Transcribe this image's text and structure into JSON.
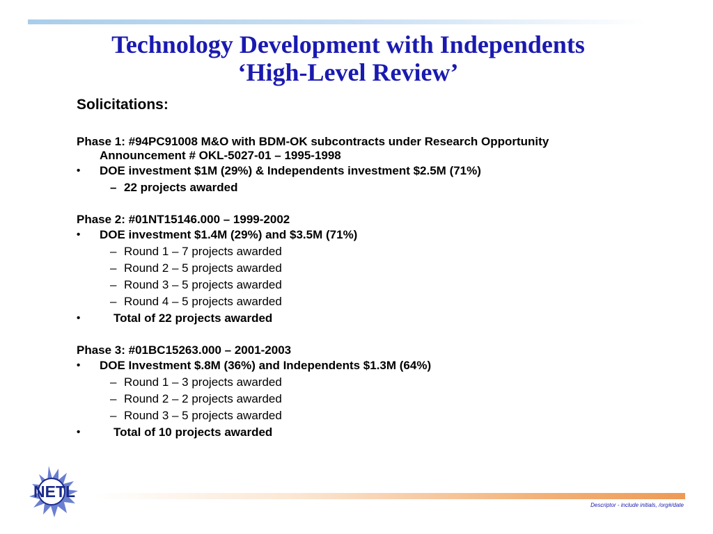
{
  "slide": {
    "title_line1": "Technology Development with Independents",
    "title_line2": "‘High-Level Review’",
    "heading": "Solicitations:",
    "phases": [
      {
        "title": "Phase 1:  #94PC91008 M&O with BDM-OK subcontracts under Research Opportunity Announcement # OKL-5027-01 – 1995-1998",
        "bullet": "DOE investment $1M (29%) & Independents investment $2.5M (71%)",
        "subitems": [
          "22 projects awarded"
        ]
      },
      {
        "title": "Phase 2:  #01NT15146.000 – 1999-2002",
        "bullet": "DOE investment $1.4M (29%) and $3.5M (71%)",
        "subitems": [
          "Round 1 – 7 projects awarded",
          "Round 2 – 5 projects awarded",
          "Round 3 – 5 projects awarded",
          "Round 4 – 5 projects awarded"
        ],
        "total": "Total of 22 projects awarded"
      },
      {
        "title": "Phase 3:  #01BC15263.000 – 2001-2003",
        "bullet": "DOE Investment $.8M (36%) and Independents $1.3M (64%)",
        "subitems": [
          "Round 1 – 3 projects awarded",
          "Round 2 – 2 projects awarded",
          "Round 3 – 5 projects awarded"
        ],
        "total": "Total of 10 projects awarded"
      }
    ],
    "bullet_glyph": "•",
    "dash_glyph": "–",
    "footer": "Descriptor - include initials, /org#/date",
    "logo_text": "NETL"
  },
  "colors": {
    "title": "#1a1ab0",
    "logo_burst": "#6a7fd0",
    "logo_ring": "#1a2a8a",
    "accent_orange": "#ee9a56",
    "accent_blue": "#a9cde9"
  }
}
